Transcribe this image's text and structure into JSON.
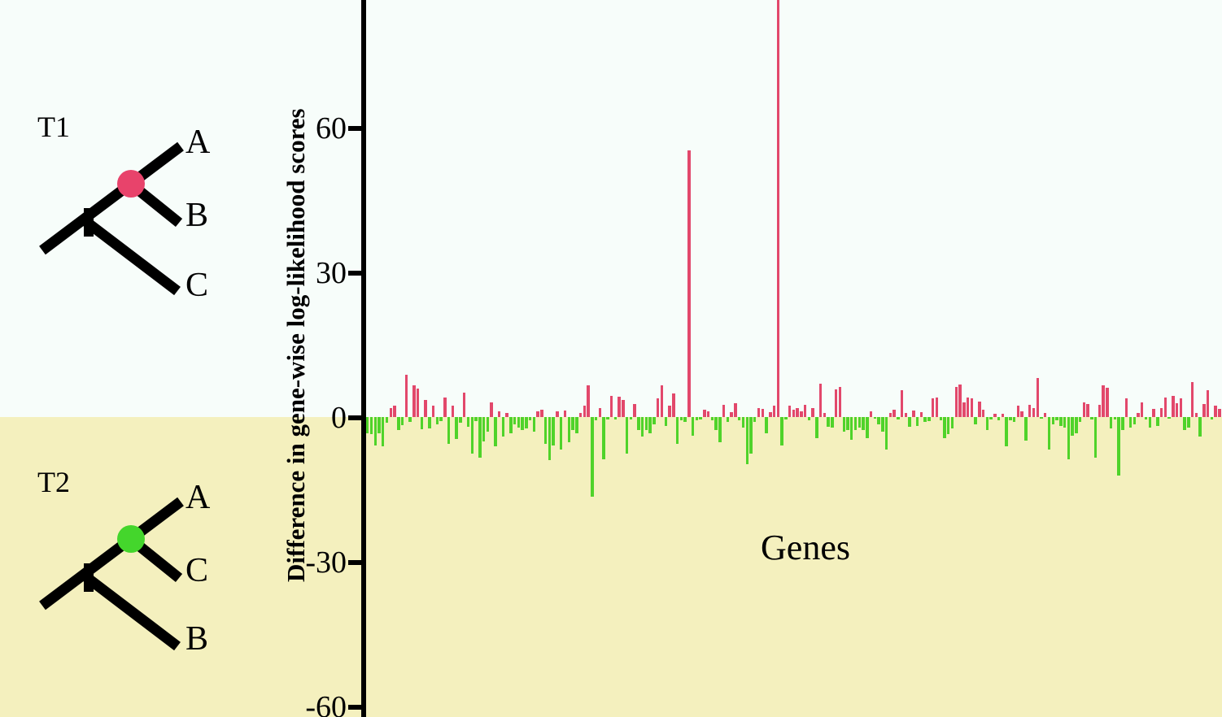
{
  "figure": {
    "background_top_color": "#f7fdfa",
    "background_bottom_color": "#f4f0be",
    "axis_color": "#000000",
    "tree_line_color": "#000000"
  },
  "trees": {
    "t1": {
      "label": "T1",
      "node_marker_color": "#e8436b",
      "leaf_top": "A",
      "leaf_middle": "B",
      "leaf_bottom": "C"
    },
    "t2": {
      "label": "T2",
      "node_marker_color": "#44d62c",
      "leaf_top": "A",
      "leaf_middle": "C",
      "leaf_bottom": "B"
    }
  },
  "chart_data": {
    "type": "bar",
    "title": "",
    "xlabel": "Genes",
    "ylabel": "Difference in gene-wise log-likelihood scores",
    "ylim": [
      -62,
      88
    ],
    "yticks": [
      60,
      30,
      0,
      -30,
      -60
    ],
    "ytick_labels": [
      "60",
      "30",
      "0",
      "-30",
      "-60"
    ],
    "grid": false,
    "positive_bar_color": "#e2486b",
    "negative_bar_color": "#4fd32a",
    "values": [
      -3.3,
      -3.6,
      -5.9,
      -3.3,
      -6.0,
      -1.1,
      1.9,
      2.4,
      -2.7,
      -1.7,
      8.8,
      -1.0,
      6.5,
      5.9,
      -2.5,
      3.6,
      -2.3,
      2.4,
      -1.5,
      -0.8,
      4.0,
      -5.6,
      2.3,
      -4.5,
      -1.2,
      5.1,
      -2.0,
      -7.5,
      -0.8,
      -8.4,
      -5.0,
      -3.0,
      3.1,
      -6.1,
      1.1,
      -4.1,
      0.8,
      -3.3,
      -1.6,
      -2.2,
      -2.7,
      -2.4,
      -0.6,
      -3.0,
      1.1,
      1.5,
      -5.6,
      -9.0,
      -5.9,
      1.1,
      -6.7,
      1.4,
      -5.3,
      -2.7,
      -3.3,
      0.8,
      2.4,
      6.5,
      -16.6,
      -0.6,
      1.8,
      -8.7,
      -0.5,
      4.4,
      -0.5,
      4.2,
      3.6,
      -7.6,
      -0.5,
      2.7,
      -2.7,
      -4.1,
      -2.7,
      -3.3,
      -1.6,
      3.8,
      6.5,
      -1.9,
      2.4,
      4.9,
      -5.6,
      -0.7,
      -1.0,
      55.2,
      -3.9,
      -0.7,
      -0.5,
      1.5,
      1.1,
      -0.7,
      -2.7,
      -5.3,
      2.5,
      -1.0,
      1.0,
      2.8,
      -0.7,
      -2.2,
      -9.8,
      -7.6,
      -1.0,
      1.8,
      1.7,
      -3.3,
      1.0,
      2.3,
      88.0,
      -5.9,
      -0.5,
      2.4,
      1.5,
      1.8,
      1.1,
      2.5,
      -0.6,
      1.8,
      -4.4,
      6.9,
      0.8,
      -2.0,
      -2.2,
      5.8,
      6.3,
      -3.0,
      -2.7,
      -4.7,
      -2.7,
      -2.2,
      -2.7,
      -4.4,
      1.1,
      -0.3,
      -1.6,
      -3.0,
      -6.7,
      0.8,
      1.5,
      -0.5,
      5.5,
      0.8,
      -2.0,
      1.4,
      -1.9,
      1.0,
      -1.0,
      -0.9,
      3.8,
      4.0,
      -0.6,
      -4.4,
      -3.6,
      -2.4,
      6.3,
      6.8,
      3.0,
      4.1,
      3.8,
      -1.6,
      3.2,
      1.5,
      -2.7,
      -0.5,
      0.7,
      -0.6,
      0.7,
      -6.0,
      -0.7,
      -1.0,
      2.4,
      1.1,
      -4.9,
      2.5,
      1.9,
      8.1,
      -0.3,
      0.8,
      -6.7,
      -1.6,
      -0.7,
      -1.9,
      -2.2,
      -8.7,
      -3.9,
      -3.3,
      -1.0,
      3.1,
      2.7,
      -0.5,
      -8.4,
      2.5,
      6.6,
      6.1,
      -2.4,
      -0.5,
      -12.1,
      -2.7,
      3.8,
      -2.2,
      -1.6,
      0.8,
      3.1,
      -0.5,
      -2.2,
      1.7,
      -1.9,
      1.9,
      4.1,
      -0.3,
      4.4,
      2.8,
      3.8,
      -2.7,
      -2.2,
      7.2,
      0.8,
      -4.1,
      2.7,
      5.5,
      -0.5,
      2.4,
      1.7
    ]
  }
}
